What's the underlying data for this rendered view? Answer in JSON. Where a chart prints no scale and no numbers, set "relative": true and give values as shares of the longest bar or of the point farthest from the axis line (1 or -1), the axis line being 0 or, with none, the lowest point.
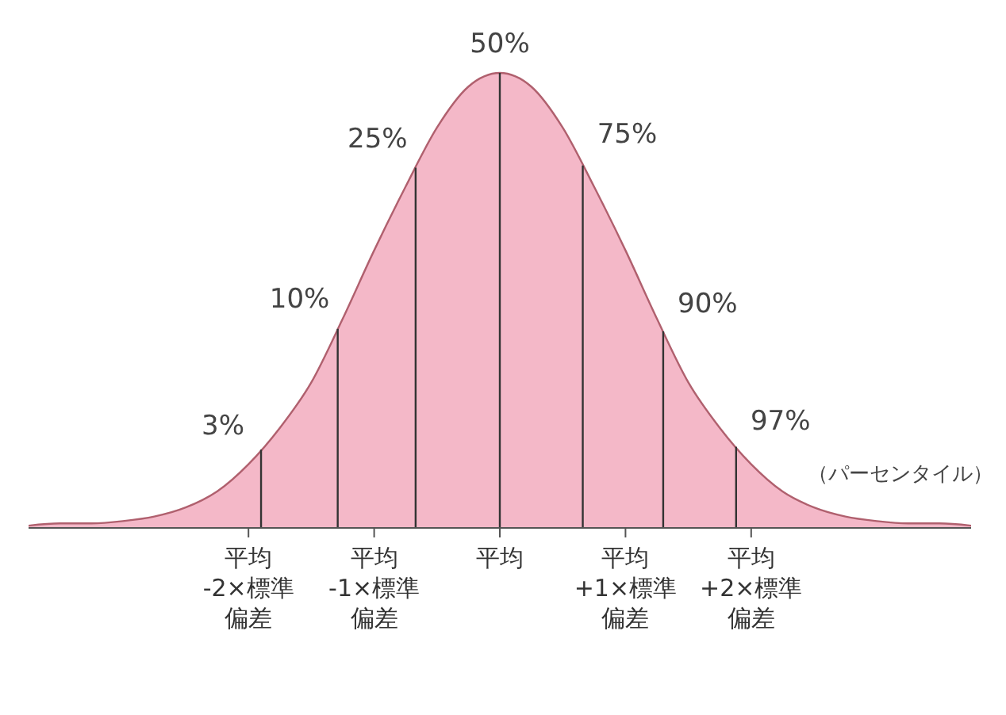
{
  "chart_data": {
    "type": "area",
    "relative": true,
    "color": "#f4b8c8",
    "x": [
      -3.75,
      -3.5,
      -3.25,
      -3,
      -2.75,
      -2.5,
      -2.25,
      -2,
      -1.75,
      -1.5,
      -1.25,
      -1,
      -0.75,
      -0.5,
      -0.25,
      0,
      0.25,
      0.5,
      0.75,
      1,
      1.25,
      1.5,
      1.75,
      2,
      2.25,
      2.5,
      2.75,
      3,
      3.25,
      3.5,
      3.75
    ],
    "values": [
      0.005,
      0.01,
      0.01,
      0.015,
      0.025,
      0.045,
      0.08,
      0.14,
      0.22,
      0.32,
      0.46,
      0.61,
      0.75,
      0.88,
      0.97,
      1,
      0.97,
      0.88,
      0.75,
      0.61,
      0.46,
      0.32,
      0.22,
      0.14,
      0.08,
      0.045,
      0.025,
      0.015,
      0.01,
      0.01,
      0.005
    ],
    "xlim": [
      -3.75,
      3.75
    ],
    "xticks": [
      {
        "value": -2,
        "label": "平均 -2×標準偏差"
      },
      {
        "value": -1,
        "label": "平均 -1×標準偏差"
      },
      {
        "value": 0,
        "label": "平均"
      },
      {
        "value": 1,
        "label": "平均 +1×標準偏差"
      },
      {
        "value": 2,
        "label": "平均 +2×標準偏差"
      }
    ],
    "ref_lines": [
      {
        "axis": "x",
        "value": -1.9
      },
      {
        "axis": "x",
        "value": -1.29
      },
      {
        "axis": "x",
        "value": -0.67
      },
      {
        "axis": "x",
        "value": 0
      },
      {
        "axis": "x",
        "value": 0.66
      },
      {
        "axis": "x",
        "value": 1.3
      },
      {
        "axis": "x",
        "value": 1.88
      }
    ],
    "annotations": [
      {
        "text": "3%",
        "x": -1.9,
        "y": 0.16
      },
      {
        "text": "10%",
        "x": -1.29,
        "y": 0.44
      },
      {
        "text": "25%",
        "x": -0.67,
        "y": 0.79
      },
      {
        "text": "50%",
        "x": 0,
        "y": 1
      },
      {
        "text": "75%",
        "x": 0.66,
        "y": 0.8
      },
      {
        "text": "90%",
        "x": 1.3,
        "y": 0.43
      },
      {
        "text": "97%",
        "x": 1.88,
        "y": 0.17
      },
      "（パーセンタイル）"
    ]
  }
}
